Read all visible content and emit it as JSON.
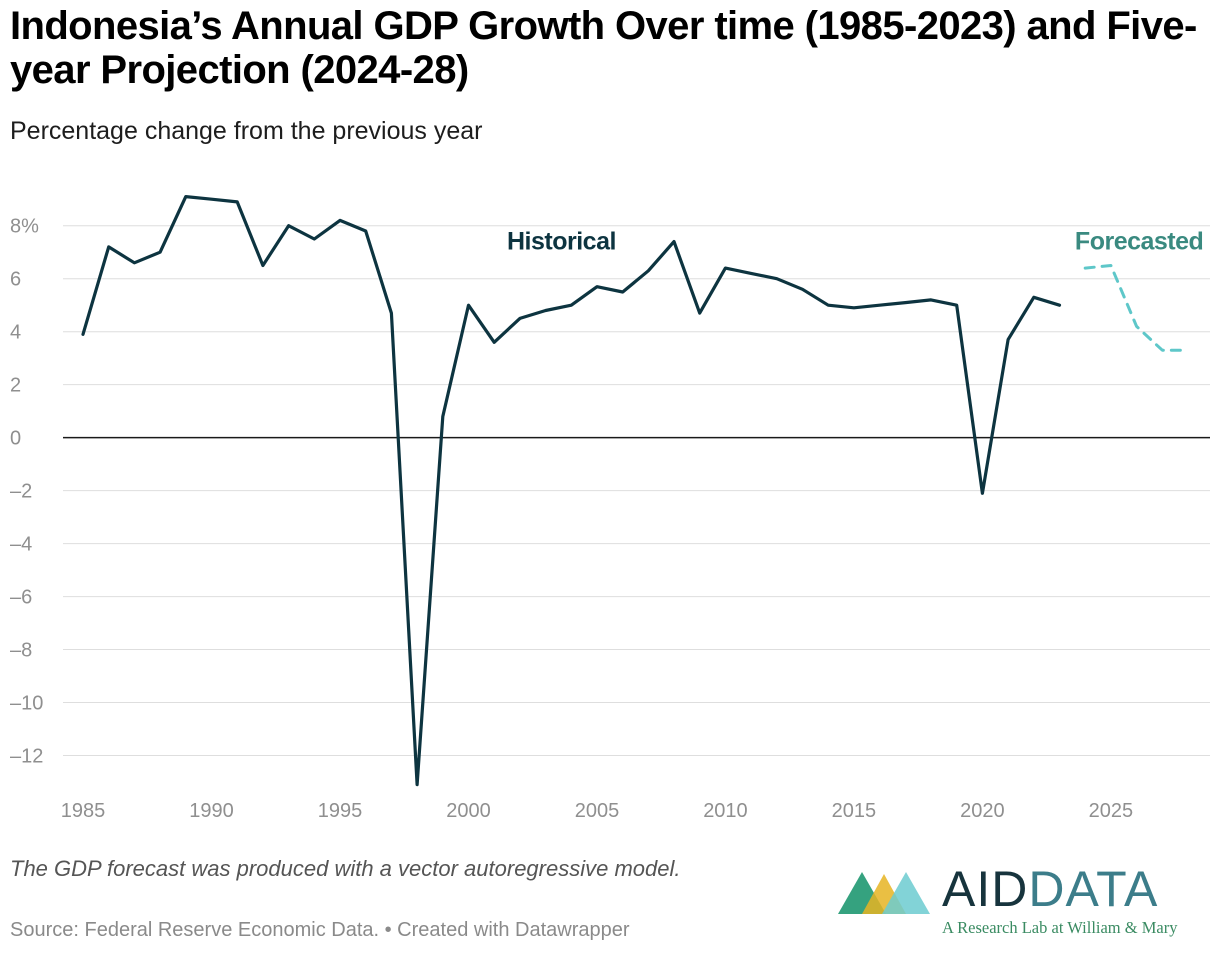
{
  "header": {
    "title": "Indonesia’s Annual GDP Growth Over time (1985-2023) and Five-year Projection (2024-28)",
    "subtitle": "Percentage change from the previous year"
  },
  "footer": {
    "note": "The GDP forecast was produced with a vector autoregressive model.",
    "source": "Source: Federal Reserve Economic Data. • Created with Datawrapper"
  },
  "logo": {
    "word_part1": "AID",
    "word_part2": "DATA",
    "tagline": "A Research Lab at William & Mary",
    "colors": [
      "#2a9d78",
      "#e6b422",
      "#6ccbd0"
    ]
  },
  "chart_data": {
    "type": "line",
    "title": "Indonesia’s Annual GDP Growth Over time (1985-2023) and Five-year Projection (2024-28)",
    "ylabel": "Percentage change from the previous year",
    "xlim": [
      1985,
      2028
    ],
    "ylim": [
      -13,
      9.5
    ],
    "grid": true,
    "x_ticks": [
      1985,
      1990,
      1995,
      2000,
      2005,
      2010,
      2015,
      2020,
      2025
    ],
    "y_ticks": [
      8,
      6,
      4,
      2,
      0,
      -2,
      -4,
      -6,
      -8,
      -10,
      -12
    ],
    "y_tick_labels": [
      "8%",
      "6",
      "4",
      "2",
      "0",
      "–2",
      "–4",
      "–6",
      "–8",
      "–10",
      "–12"
    ],
    "series": [
      {
        "name": "Historical",
        "color": "#0d3440",
        "style": "solid",
        "label_anchor": [
          2001.5,
          7.1
        ],
        "points": [
          [
            1985,
            3.9
          ],
          [
            1986,
            7.2
          ],
          [
            1987,
            6.6
          ],
          [
            1988,
            7.0
          ],
          [
            1989,
            9.1
          ],
          [
            1990,
            9.0
          ],
          [
            1991,
            8.9
          ],
          [
            1992,
            6.5
          ],
          [
            1993,
            8.0
          ],
          [
            1994,
            7.5
          ],
          [
            1995,
            8.2
          ],
          [
            1996,
            7.8
          ],
          [
            1997,
            4.7
          ],
          [
            1998,
            -13.1
          ],
          [
            1999,
            0.8
          ],
          [
            2000,
            5.0
          ],
          [
            2001,
            3.6
          ],
          [
            2002,
            4.5
          ],
          [
            2003,
            4.8
          ],
          [
            2004,
            5.0
          ],
          [
            2005,
            5.7
          ],
          [
            2006,
            5.5
          ],
          [
            2007,
            6.3
          ],
          [
            2008,
            7.4
          ],
          [
            2009,
            4.7
          ],
          [
            2010,
            6.4
          ],
          [
            2011,
            6.2
          ],
          [
            2012,
            6.0
          ],
          [
            2013,
            5.6
          ],
          [
            2014,
            5.0
          ],
          [
            2015,
            4.9
          ],
          [
            2016,
            5.0
          ],
          [
            2017,
            5.1
          ],
          [
            2018,
            5.2
          ],
          [
            2019,
            5.0
          ],
          [
            2020,
            -2.1
          ],
          [
            2021,
            3.7
          ],
          [
            2022,
            5.3
          ],
          [
            2023,
            5.0
          ]
        ]
      },
      {
        "name": "Forecasted",
        "color": "#5ec7c9",
        "label_color": "#3a8a80",
        "style": "dashed",
        "label_anchor": [
          2023.6,
          7.1
        ],
        "points": [
          [
            2024,
            6.4
          ],
          [
            2025,
            6.5
          ],
          [
            2026,
            4.2
          ],
          [
            2027,
            3.3
          ],
          [
            2028,
            3.3
          ]
        ]
      }
    ]
  }
}
